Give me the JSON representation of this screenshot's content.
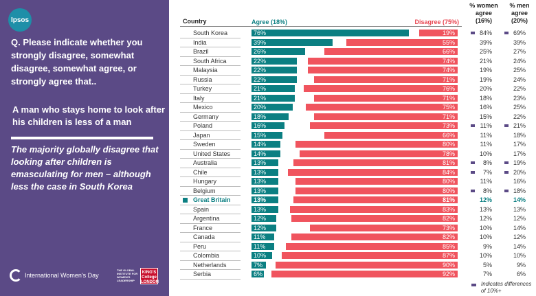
{
  "brand": {
    "ipsos": "Ipsos"
  },
  "panel": {
    "question": "Q. Please indicate whether you strongly disagree, somewhat disagree, somewhat agree, or strongly agree that..",
    "statement": "A man who stays home to look after his children is less of a man",
    "insight": "The majority globally disagree that looking after children is emasculating for men – although less the case in South Korea",
    "iwd_label": "International Women's Day",
    "giwl_label": "THE GLOBAL INSTITUTE FOR WOMEN'S LEADERSHIP",
    "kcl_label": "KING'S College LONDON"
  },
  "colors": {
    "agree": "#0b7f82",
    "disagree": "#f0545e",
    "panel": "#5b4a86",
    "flag": "#5b4a86"
  },
  "legend": {
    "flag_text": "Indicates differences of 10%+"
  },
  "chart_data": {
    "type": "bar",
    "orientation": "horizontal-diverging",
    "country_header": "Country",
    "agree_label": "Agree (18%)",
    "disagree_label": "Disagree  (75%)",
    "women_header": "% women agree (16%)",
    "men_header": "% men agree (20%)",
    "highlight": "Great Britain",
    "rows": [
      {
        "country": "South Korea",
        "agree": 76,
        "disagree": 19,
        "women": 84,
        "men": 69,
        "women_flag": true,
        "men_flag": true
      },
      {
        "country": "India",
        "agree": 39,
        "disagree": 55,
        "women": 39,
        "men": 39,
        "women_flag": false,
        "men_flag": false
      },
      {
        "country": "Brazil",
        "agree": 26,
        "disagree": 66,
        "women": 25,
        "men": 27,
        "women_flag": false,
        "men_flag": false
      },
      {
        "country": "South Africa",
        "agree": 22,
        "disagree": 74,
        "women": 21,
        "men": 24,
        "women_flag": false,
        "men_flag": false
      },
      {
        "country": "Malaysia",
        "agree": 22,
        "disagree": 74,
        "women": 19,
        "men": 25,
        "women_flag": false,
        "men_flag": false
      },
      {
        "country": "Russia",
        "agree": 22,
        "disagree": 71,
        "women": 19,
        "men": 24,
        "women_flag": false,
        "men_flag": false
      },
      {
        "country": "Turkey",
        "agree": 21,
        "disagree": 76,
        "women": 20,
        "men": 22,
        "women_flag": false,
        "men_flag": false
      },
      {
        "country": "Italy",
        "agree": 21,
        "disagree": 71,
        "women": 18,
        "men": 23,
        "women_flag": false,
        "men_flag": false
      },
      {
        "country": "Mexico",
        "agree": 20,
        "disagree": 75,
        "women": 16,
        "men": 25,
        "women_flag": false,
        "men_flag": false
      },
      {
        "country": "Germany",
        "agree": 18,
        "disagree": 71,
        "women": 15,
        "men": 22,
        "women_flag": false,
        "men_flag": false
      },
      {
        "country": "Poland",
        "agree": 16,
        "disagree": 73,
        "women": 11,
        "men": 21,
        "women_flag": true,
        "men_flag": true
      },
      {
        "country": "Japan",
        "agree": 15,
        "disagree": 66,
        "women": 11,
        "men": 18,
        "women_flag": false,
        "men_flag": false
      },
      {
        "country": "Sweden",
        "agree": 14,
        "disagree": 80,
        "women": 11,
        "men": 17,
        "women_flag": false,
        "men_flag": false
      },
      {
        "country": "United States",
        "agree": 14,
        "disagree": 78,
        "women": 10,
        "men": 17,
        "women_flag": false,
        "men_flag": false
      },
      {
        "country": "Australia",
        "agree": 13,
        "disagree": 81,
        "women": 8,
        "men": 19,
        "women_flag": true,
        "men_flag": true
      },
      {
        "country": "Chile",
        "agree": 13,
        "disagree": 84,
        "women": 7,
        "men": 20,
        "women_flag": true,
        "men_flag": true
      },
      {
        "country": "Hungary",
        "agree": 13,
        "disagree": 80,
        "women": 11,
        "men": 16,
        "women_flag": false,
        "men_flag": false
      },
      {
        "country": "Belgium",
        "agree": 13,
        "disagree": 80,
        "women": 8,
        "men": 18,
        "women_flag": true,
        "men_flag": true
      },
      {
        "country": "Great Britain",
        "agree": 13,
        "disagree": 81,
        "women": 12,
        "men": 14,
        "women_flag": false,
        "men_flag": false
      },
      {
        "country": "Spain",
        "agree": 13,
        "disagree": 83,
        "women": 13,
        "men": 13,
        "women_flag": false,
        "men_flag": false
      },
      {
        "country": "Argentina",
        "agree": 12,
        "disagree": 82,
        "women": 12,
        "men": 12,
        "women_flag": false,
        "men_flag": false
      },
      {
        "country": "France",
        "agree": 12,
        "disagree": 73,
        "women": 10,
        "men": 14,
        "women_flag": false,
        "men_flag": false
      },
      {
        "country": "Canada",
        "agree": 11,
        "disagree": 82,
        "women": 10,
        "men": 12,
        "women_flag": false,
        "men_flag": false
      },
      {
        "country": "Peru",
        "agree": 11,
        "disagree": 85,
        "women": 9,
        "men": 14,
        "women_flag": false,
        "men_flag": false
      },
      {
        "country": "Colombia",
        "agree": 10,
        "disagree": 87,
        "women": 10,
        "men": 10,
        "women_flag": false,
        "men_flag": false
      },
      {
        "country": "Netherlands",
        "agree": 7,
        "disagree": 90,
        "women": 5,
        "men": 9,
        "women_flag": false,
        "men_flag": false
      },
      {
        "country": "Serbia",
        "agree": 6,
        "disagree": 92,
        "women": 7,
        "men": 6,
        "women_flag": false,
        "men_flag": false
      }
    ]
  }
}
